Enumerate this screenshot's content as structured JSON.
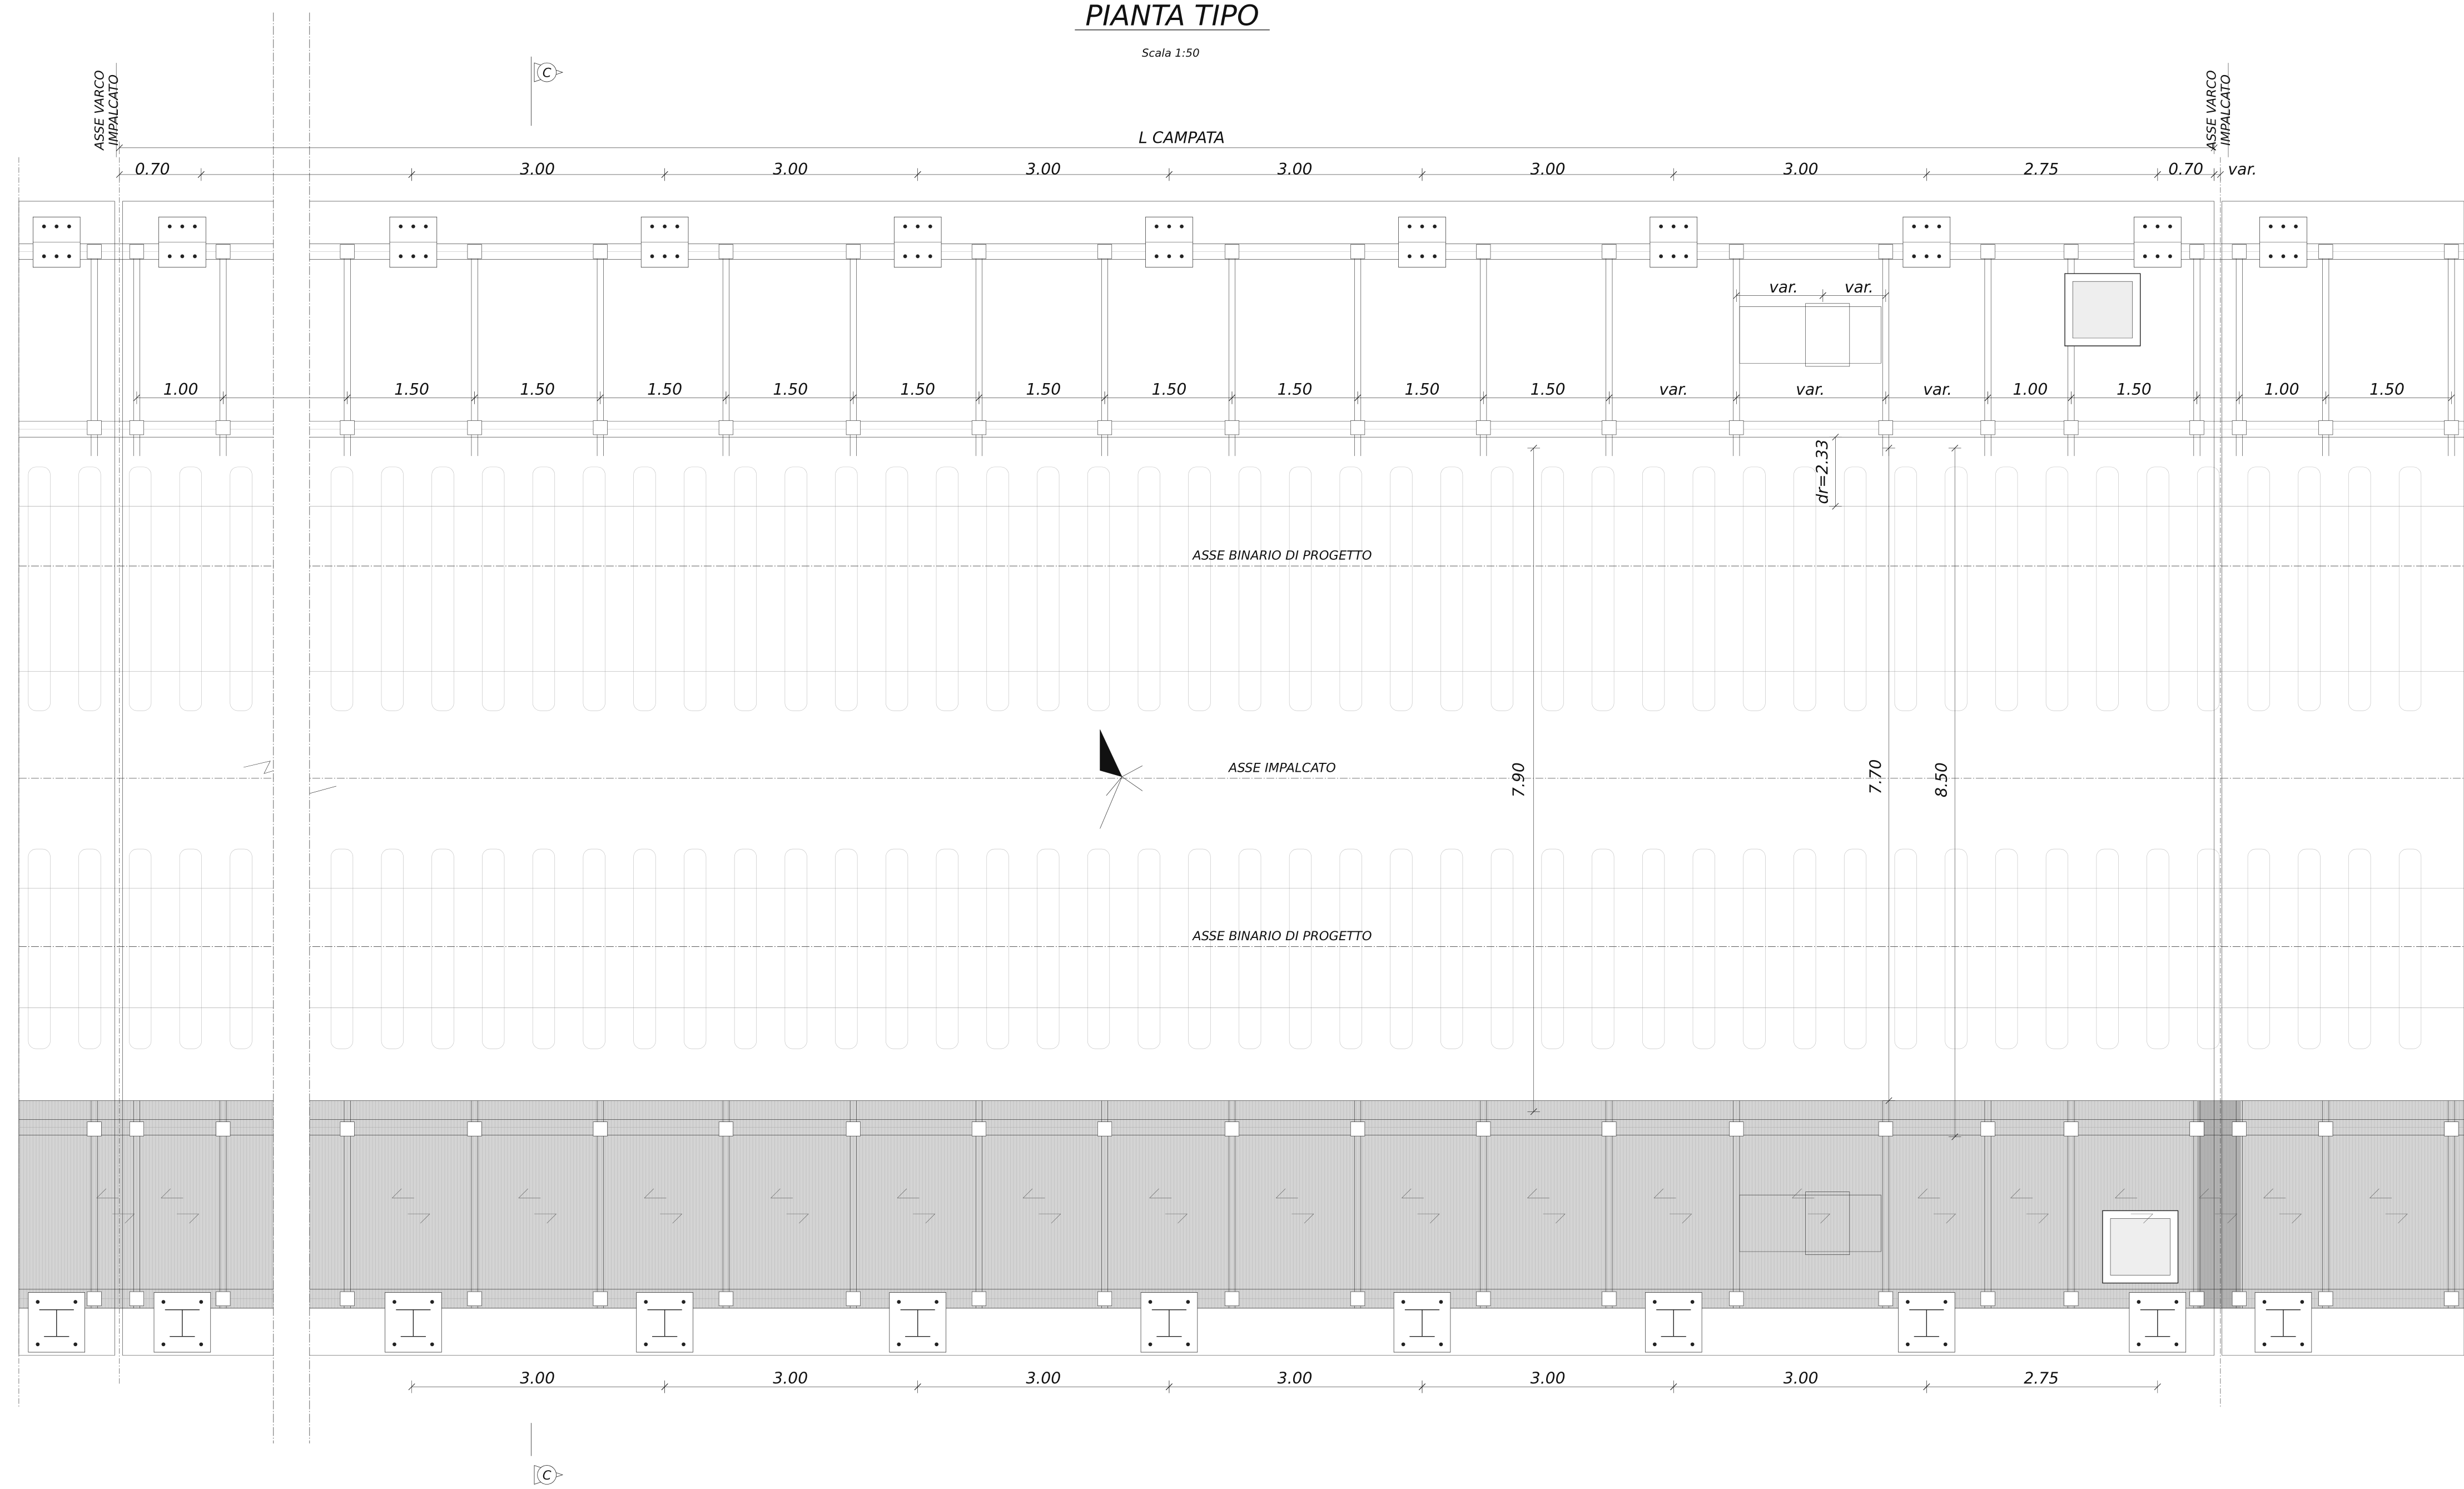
{
  "header": {
    "title": "PIANTA TIPO",
    "scale": "Scala 1:50"
  },
  "section_marks": [
    "C",
    "C"
  ],
  "axis_labels": {
    "left": [
      "ASSE VARCO",
      "IMPALCATO"
    ],
    "right": [
      "ASSE VARCO",
      "IMPALCATO"
    ]
  },
  "span_label": "L CAMPATA",
  "top_dimensions": [
    "0.70",
    "3.00",
    "3.00",
    "3.00",
    "3.00",
    "3.00",
    "3.00",
    "2.75",
    "0.70",
    "var."
  ],
  "inner_dimensions": [
    "1.00",
    "1.50",
    "1.50",
    "1.50",
    "1.50",
    "1.50",
    "1.50",
    "1.50",
    "1.50",
    "1.50",
    "1.50",
    "var.",
    "var.",
    "var.",
    "1.00",
    "1.50",
    "1.00",
    "1.50"
  ],
  "detail_dimensions": [
    "var.",
    "var."
  ],
  "vertical_dimensions": [
    "dr=2.33",
    "7.90",
    "7.70",
    "8.50"
  ],
  "axes": [
    "ASSE BINARIO DI PROGETTO",
    "ASSE IMPALCATO",
    "ASSE BINARIO DI PROGETTO"
  ],
  "bottom_dimensions": [
    "3.00",
    "3.00",
    "3.00",
    "3.00",
    "3.00",
    "3.00",
    "2.75"
  ]
}
